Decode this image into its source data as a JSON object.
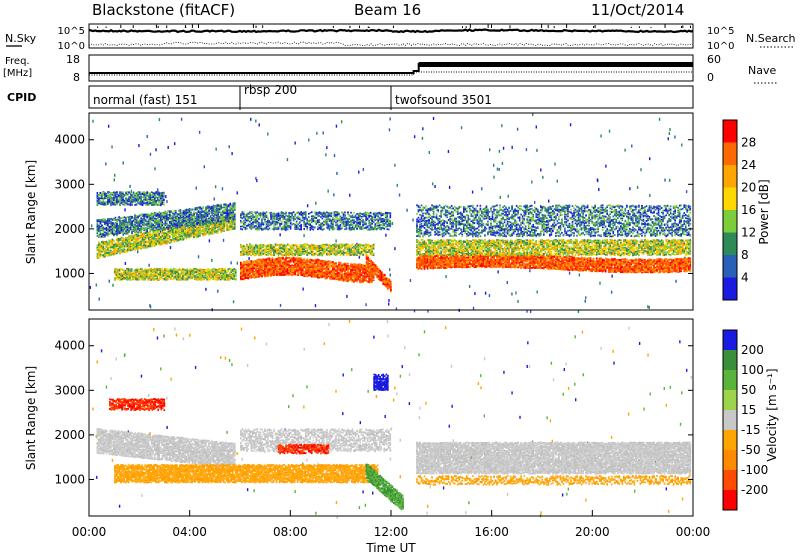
{
  "header": {
    "station": "Blackstone (fitACF)",
    "beam": "Beam 16",
    "date": "11/Oct/2014"
  },
  "side_labels": {
    "nsky": "N.Sky",
    "freq_line1": "Freq.",
    "freq_line2": "[MHz]",
    "cpid": "CPID",
    "nsearch": "N.Search",
    "nave": "Nave"
  },
  "chart_data": [
    {
      "type": "line",
      "panel": "noise",
      "ytick_labels_left": [
        "10^5",
        "10^0"
      ],
      "ytick_labels_right": [
        "10^5",
        "10^0"
      ],
      "series": [
        {
          "name": "N.Sky"
        },
        {
          "name": "N.Search"
        }
      ]
    },
    {
      "type": "line",
      "panel": "frequency-nave",
      "ytick_labels_left": [
        "18",
        "8"
      ],
      "ytick_labels_right": [
        "60",
        "0"
      ],
      "series": [
        {
          "name": "Freq."
        },
        {
          "name": "Nave"
        }
      ],
      "steps": [
        {
          "x": "00:00",
          "nave": 20
        },
        {
          "x": "12:50",
          "nave": 28
        },
        {
          "x": "13:00",
          "nave": 42
        }
      ]
    },
    {
      "type": "table",
      "panel": "cpid",
      "segments": [
        {
          "label": "normal (fast) 151",
          "start": "00:00"
        },
        {
          "label": "rbsp 200",
          "start": "06:00"
        },
        {
          "label": "twofsound 3501",
          "start": "12:00"
        }
      ]
    },
    {
      "type": "heatmap",
      "panel": "power",
      "ylabel": "Slant Range [km]",
      "yticks": [
        1000,
        2000,
        3000,
        4000
      ],
      "ylim": [
        180,
        4600
      ],
      "colorbar_label": "Power [dB]",
      "colorbar_ticks": [
        28,
        24,
        20,
        16,
        12,
        8,
        4
      ],
      "colorbar_colors": [
        "#ff0000",
        "#ff6a00",
        "#ffa500",
        "#ffd700",
        "#7ccd3a",
        "#2e8b57",
        "#2b60b8",
        "#1a1ae0"
      ]
    },
    {
      "type": "heatmap",
      "panel": "velocity",
      "ylabel": "Slant Range [km]",
      "xlabel": "Time UT",
      "yticks": [
        1000,
        2000,
        3000,
        4000
      ],
      "ylim": [
        180,
        4600
      ],
      "xticks": [
        "00:00",
        "04:00",
        "08:00",
        "12:00",
        "16:00",
        "20:00",
        "00:00"
      ],
      "colorbar_label": "Velocity [m s⁻¹]",
      "colorbar_ticks": [
        "200",
        "100",
        "50",
        "15",
        "-15",
        "-50",
        "-100",
        "-200"
      ],
      "colorbar_colors": [
        "#1a1ae0",
        "#3a8f3a",
        "#5ab43c",
        "#9cd44a",
        "#c8c8c8",
        "#ffa500",
        "#ff8a00",
        "#ff4a00",
        "#ff0000"
      ]
    }
  ]
}
